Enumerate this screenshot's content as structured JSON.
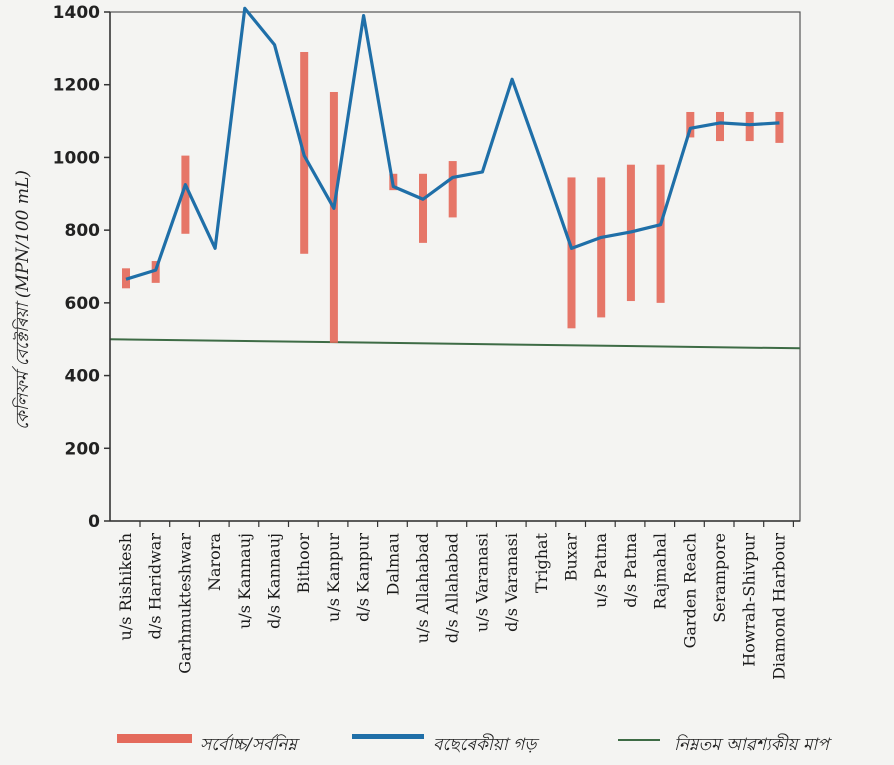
{
  "chart_data": {
    "type": "line",
    "ylabel": "কেলিফৰ্ম বেক্টেৰিয়া (MPN/100 mL)",
    "ylim": [
      0,
      1400
    ],
    "yticks": [
      0,
      200,
      400,
      600,
      800,
      1000,
      1200,
      1400
    ],
    "categories": [
      "u/s Rishikesh",
      "d/s Haridwar",
      "Garhmukteshwar",
      "Narora",
      "u/s Kannauj",
      "d/s Kannauj",
      "Bithoor",
      "u/s Kanpur",
      "d/s Kanpur",
      "Dalmau",
      "u/s Allahabad",
      "d/s Allahabad",
      "u/s Varanasi",
      "d/s Varanasi",
      "Trighat",
      "Buxar",
      "u/s Patna",
      "d/s Patna",
      "Rajmahal",
      "Garden Reach",
      "Serampore",
      "Howrah-Shivpur",
      "Diamond Harbour"
    ],
    "series": [
      {
        "name": "বছেৰেকীয়া গড়",
        "color": "#1f6fa8",
        "values": [
          665,
          690,
          925,
          750,
          1410,
          1310,
          1005,
          860,
          1390,
          920,
          885,
          945,
          960,
          1215,
          985,
          750,
          780,
          795,
          815,
          1080,
          1095,
          1090,
          1095
        ]
      },
      {
        "name": "সৰ্বোচ্চ/সৰ্বনিম্ন",
        "color": "#e46a5c",
        "ranges": [
          [
            640,
            695
          ],
          [
            655,
            715
          ],
          [
            790,
            1005
          ],
          null,
          null,
          null,
          [
            735,
            1290
          ],
          [
            490,
            1180
          ],
          null,
          [
            910,
            955
          ],
          [
            765,
            955
          ],
          [
            835,
            990
          ],
          null,
          null,
          null,
          [
            530,
            945
          ],
          [
            560,
            945
          ],
          [
            605,
            980
          ],
          [
            600,
            980
          ],
          [
            1055,
            1125
          ],
          [
            1045,
            1125
          ],
          [
            1045,
            1125
          ],
          [
            1040,
            1125
          ]
        ]
      },
      {
        "name": "নিম্নতম আৱশ্যকীয় মাপ",
        "color": "#3d6b45",
        "threshold": [
          500,
          475
        ]
      }
    ],
    "legend": {
      "position": "bottom"
    }
  }
}
